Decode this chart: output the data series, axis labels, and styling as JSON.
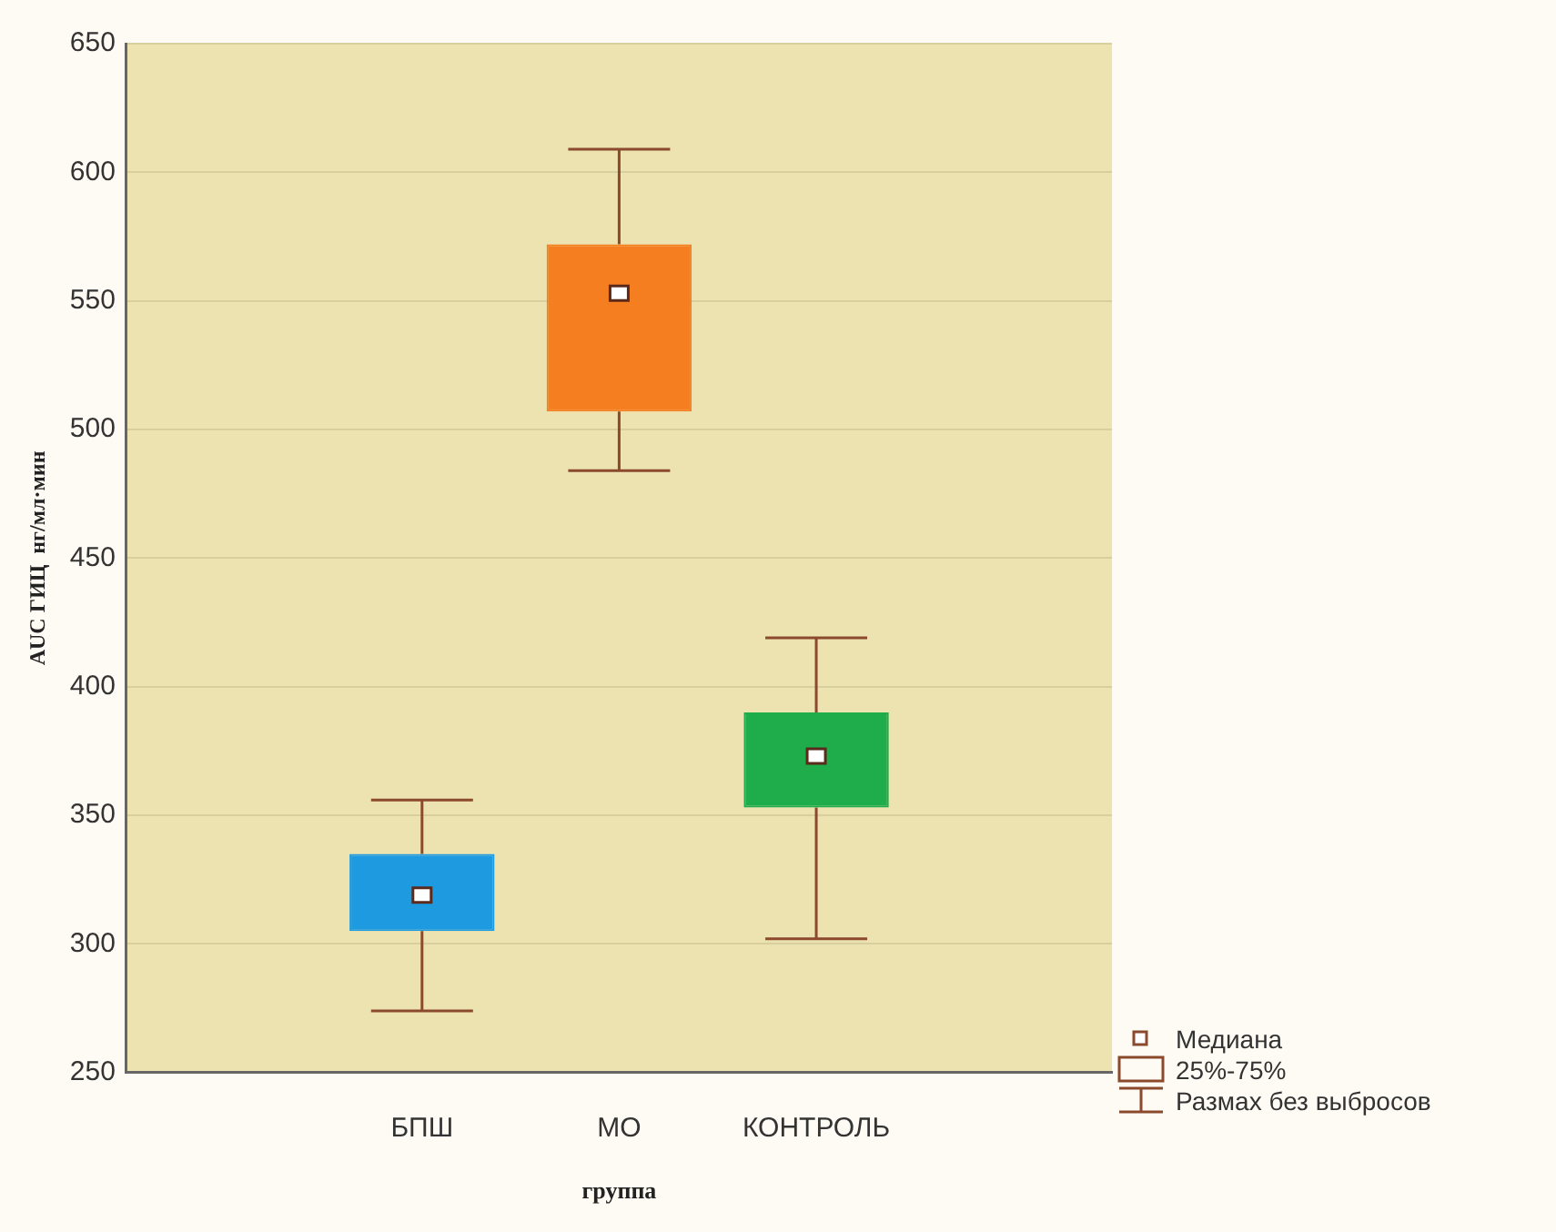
{
  "chart_data": {
    "type": "box",
    "xlabel": "группа",
    "ylabel": "AUC ГИЦ  нг/мл·мин",
    "categories": [
      null,
      "БПШ",
      "МО",
      "КОНТРОЛЬ",
      null
    ],
    "boxes": [
      null,
      {
        "low": 274,
        "q1": 305,
        "median": 319,
        "q3": 335,
        "high": 356
      },
      {
        "low": 484,
        "q1": 507,
        "median": 553,
        "q3": 572,
        "high": 609
      },
      {
        "low": 302,
        "q1": 353,
        "median": 373,
        "q3": 390,
        "high": 419
      },
      null
    ],
    "colors": [
      "#ffffff",
      "#1e9be0",
      "#f57f20",
      "#1fac4a",
      "#ffffff"
    ],
    "ylim": [
      250,
      650
    ],
    "yticks": [
      250,
      300,
      350,
      400,
      450,
      500,
      550,
      600,
      650
    ],
    "grid": "y",
    "annotations": [
      "Медиана",
      "25%-75%",
      "Размах без выбросов"
    ]
  }
}
